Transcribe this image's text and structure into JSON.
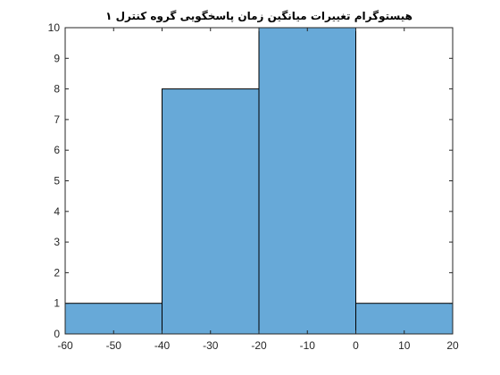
{
  "chart_data": {
    "type": "bar",
    "title": "هیستوگرام تغییرات میانگین زمان پاسخگویی گروه کنترل ۱",
    "xlabel": "",
    "ylabel": "",
    "xlim": [
      -60,
      20
    ],
    "ylim": [
      0,
      10
    ],
    "bins": [
      {
        "x0": -60,
        "x1": -40,
        "count": 1
      },
      {
        "x0": -40,
        "x1": -20,
        "count": 8
      },
      {
        "x0": -20,
        "x1": 0,
        "count": 10
      },
      {
        "x0": 0,
        "x1": 20,
        "count": 1
      }
    ],
    "xticks": [
      -60,
      -50,
      -40,
      -30,
      -20,
      -10,
      0,
      10,
      20
    ],
    "xtick_labels": [
      "-60",
      "-50",
      "-40",
      "-30",
      "-20",
      "-10",
      "0",
      "10",
      "20"
    ],
    "yticks": [
      0,
      1,
      2,
      3,
      4,
      5,
      6,
      7,
      8,
      9,
      10
    ],
    "ytick_labels": [
      "0",
      "1",
      "2",
      "3",
      "4",
      "5",
      "6",
      "7",
      "8",
      "9",
      "10"
    ],
    "bar_color": "#67a9d8",
    "edge_color": "#000000",
    "grid": false,
    "legend": false
  }
}
